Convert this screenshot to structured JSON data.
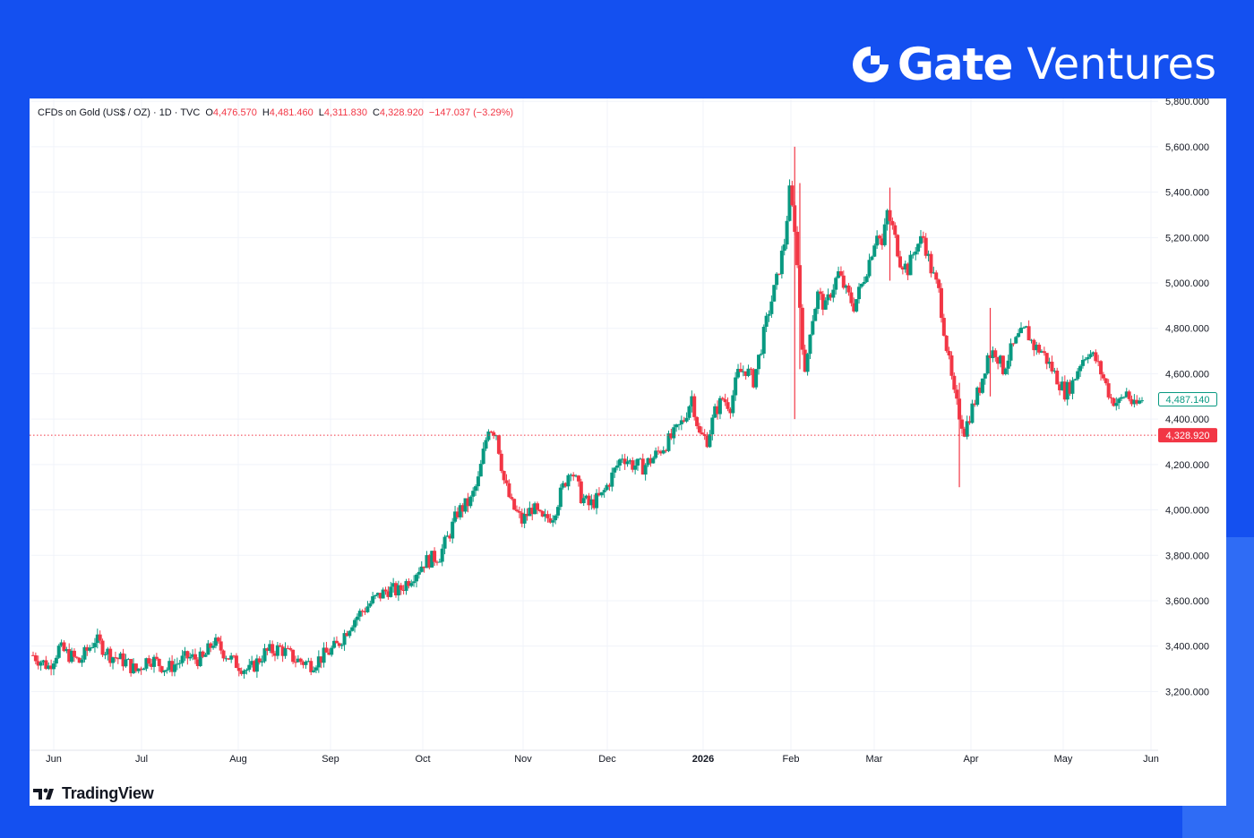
{
  "brand": {
    "name_bold": "Gate",
    "name_light": "Ventures",
    "icon": "gate-logo-icon"
  },
  "legend": {
    "symbol": "CFDs on Gold (US$ / OZ) · 1D · TVC",
    "open_label": "O",
    "open": "4,476.570",
    "high_label": "H",
    "high": "4,481.460",
    "low_label": "L",
    "low": "4,311.830",
    "close_label": "C",
    "close": "4,328.920",
    "change": "−147.037 (−3.29%)"
  },
  "footer": {
    "provider": "TradingView",
    "icon": "tradingview-logo-icon"
  },
  "colors": {
    "up": "#089981",
    "down": "#f23645",
    "grid": "#f0f3fa",
    "label_text": "#131722",
    "brand_bg": "#1450f0"
  },
  "chart_data": {
    "type": "candlestick",
    "title": "CFDs on Gold (US$ / OZ) · 1D · TVC",
    "x_axis": {
      "tick_labels": [
        "Jun",
        "Jul",
        "Aug",
        "Sep",
        "Oct",
        "Nov",
        "Dec",
        "2026",
        "Feb",
        "Mar",
        "Apr",
        "May",
        "Jun"
      ],
      "bold_tick": "2026"
    },
    "y_axis": {
      "ticks": [
        3200,
        3400,
        3600,
        3800,
        4000,
        4200,
        4400,
        4600,
        4800,
        5000,
        5200,
        5400,
        5600,
        5800
      ],
      "tick_labels": [
        "3,200.000",
        "3,400.000",
        "3,600.000",
        "3,800.000",
        "4,000.000",
        "4,200.000",
        "4,400.000",
        "4,600.000",
        "4,800.000",
        "5,000.000",
        "5,200.000",
        "5,400.000",
        "5,600.000",
        "5,800.000"
      ],
      "range": [
        3020,
        5860
      ],
      "side": "right"
    },
    "grid": true,
    "price_lines": [
      {
        "value": 4487.14,
        "label": "4,487.140",
        "style": "outline",
        "color": "#089981"
      },
      {
        "value": 4328.92,
        "label": "4,328.920",
        "style": "filled",
        "color": "#f23645",
        "dotted_line": true
      }
    ],
    "series_path": [
      [
        0,
        3360
      ],
      [
        6,
        3310
      ],
      [
        10,
        3390
      ],
      [
        18,
        3330
      ],
      [
        24,
        3430
      ],
      [
        30,
        3360
      ],
      [
        36,
        3330
      ],
      [
        40,
        3290
      ],
      [
        45,
        3350
      ],
      [
        52,
        3300
      ],
      [
        60,
        3350
      ],
      [
        66,
        3340
      ],
      [
        70,
        3420
      ],
      [
        78,
        3330
      ],
      [
        84,
        3290
      ],
      [
        90,
        3370
      ],
      [
        96,
        3390
      ],
      [
        102,
        3340
      ],
      [
        108,
        3320
      ],
      [
        112,
        3350
      ],
      [
        118,
        3400
      ],
      [
        124,
        3510
      ],
      [
        132,
        3600
      ],
      [
        138,
        3650
      ],
      [
        142,
        3640
      ],
      [
        148,
        3720
      ],
      [
        152,
        3770
      ],
      [
        158,
        3800
      ],
      [
        162,
        3900
      ],
      [
        165,
        3990
      ],
      [
        170,
        4040
      ],
      [
        173,
        4130
      ],
      [
        177,
        4370
      ],
      [
        180,
        4340
      ],
      [
        183,
        4130
      ],
      [
        186,
        4020
      ],
      [
        190,
        3950
      ],
      [
        194,
        4010
      ],
      [
        198,
        3950
      ],
      [
        202,
        3980
      ],
      [
        206,
        4100
      ],
      [
        209,
        4190
      ],
      [
        213,
        4060
      ],
      [
        216,
        4020
      ],
      [
        221,
        4060
      ],
      [
        225,
        4150
      ],
      [
        229,
        4240
      ],
      [
        233,
        4200
      ],
      [
        237,
        4190
      ],
      [
        241,
        4230
      ],
      [
        245,
        4280
      ],
      [
        249,
        4330
      ],
      [
        253,
        4400
      ],
      [
        256,
        4500
      ],
      [
        259,
        4330
      ],
      [
        262,
        4310
      ],
      [
        265,
        4430
      ],
      [
        268,
        4490
      ],
      [
        271,
        4460
      ],
      [
        274,
        4600
      ],
      [
        277,
        4620
      ],
      [
        280,
        4570
      ],
      [
        283,
        4720
      ],
      [
        286,
        4880
      ],
      [
        289,
        5010
      ],
      [
        292,
        5180
      ],
      [
        294,
        5400
      ],
      [
        296,
        5250
      ],
      [
        298,
        4900
      ],
      [
        300,
        4580
      ],
      [
        302,
        4800
      ],
      [
        305,
        4950
      ],
      [
        308,
        4890
      ],
      [
        310,
        4960
      ],
      [
        313,
        5040
      ],
      [
        316,
        4960
      ],
      [
        319,
        4900
      ],
      [
        322,
        4990
      ],
      [
        325,
        5100
      ],
      [
        328,
        5230
      ],
      [
        330,
        5160
      ],
      [
        332,
        5310
      ],
      [
        334,
        5240
      ],
      [
        337,
        5100
      ],
      [
        340,
        5060
      ],
      [
        343,
        5160
      ],
      [
        346,
        5200
      ],
      [
        349,
        5060
      ],
      [
        352,
        4960
      ],
      [
        355,
        4720
      ],
      [
        358,
        4500
      ],
      [
        360,
        4420
      ],
      [
        362,
        4350
      ],
      [
        365,
        4450
      ],
      [
        368,
        4540
      ],
      [
        371,
        4680
      ],
      [
        374,
        4700
      ],
      [
        377,
        4620
      ],
      [
        380,
        4700
      ],
      [
        383,
        4760
      ],
      [
        386,
        4790
      ],
      [
        389,
        4720
      ],
      [
        392,
        4700
      ],
      [
        395,
        4640
      ],
      [
        398,
        4580
      ],
      [
        401,
        4520
      ],
      [
        404,
        4560
      ],
      [
        407,
        4650
      ],
      [
        410,
        4700
      ],
      [
        413,
        4660
      ],
      [
        416,
        4580
      ],
      [
        419,
        4490
      ],
      [
        422,
        4470
      ],
      [
        425,
        4520
      ],
      [
        428,
        4450
      ],
      [
        431,
        4487
      ]
    ],
    "notable_wicks": [
      {
        "x": 296,
        "high": 5600,
        "low": 4400
      },
      {
        "x": 298,
        "high": 5440,
        "low": 4620
      },
      {
        "x": 333,
        "high": 5420,
        "low": 5010
      },
      {
        "x": 360,
        "high": 4560,
        "low": 4100
      },
      {
        "x": 372,
        "high": 4890,
        "low": 4500
      }
    ]
  }
}
